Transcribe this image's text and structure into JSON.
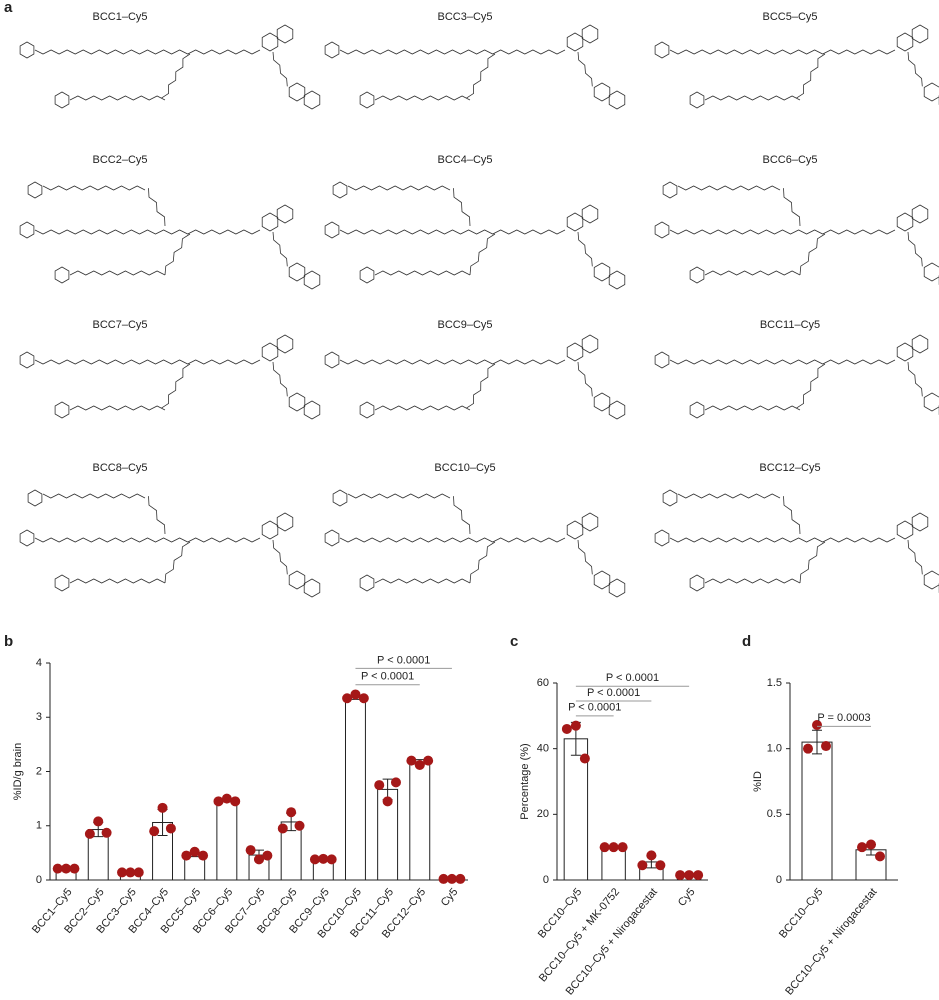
{
  "structures": {
    "panel": "a",
    "labels": [
      "BCC1–Cy5",
      "BCC3–Cy5",
      "BCC5–Cy5",
      "BCC2–Cy5",
      "BCC4–Cy5",
      "BCC6–Cy5",
      "BCC7–Cy5",
      "BCC9–Cy5",
      "BCC11–Cy5",
      "BCC8–Cy5",
      "BCC10–Cy5",
      "BCC12–Cy5"
    ]
  },
  "chart_data": [
    {
      "type": "bar",
      "panel": "b",
      "ylabel": "%ID/g brain",
      "categories": [
        "BCC1–Cy5",
        "BCC2–Cy5",
        "BCC3–Cy5",
        "BCC4–Cy5",
        "BCC5–Cy5",
        "BCC6–Cy5",
        "BCC7–Cy5",
        "BCC8–Cy5",
        "BCC9–Cy5",
        "BCC10–Cy5",
        "BCC11–Cy5",
        "BCC12–Cy5",
        "Cy5"
      ],
      "values": [
        0.21,
        0.93,
        0.14,
        1.06,
        0.47,
        1.47,
        0.46,
        1.07,
        0.38,
        3.37,
        1.67,
        2.17,
        0.02
      ],
      "errors": [
        0.01,
        0.13,
        0.01,
        0.24,
        0.04,
        0.03,
        0.09,
        0.16,
        0.01,
        0.04,
        0.19,
        0.05,
        0.01
      ],
      "points": [
        [
          0.21,
          0.21,
          0.21
        ],
        [
          0.85,
          1.08,
          0.87
        ],
        [
          0.14,
          0.14,
          0.14
        ],
        [
          0.9,
          1.33,
          0.95
        ],
        [
          0.45,
          0.52,
          0.45
        ],
        [
          1.45,
          1.5,
          1.45
        ],
        [
          0.55,
          0.38,
          0.45
        ],
        [
          0.95,
          1.25,
          1.0
        ],
        [
          0.38,
          0.39,
          0.38
        ],
        [
          3.35,
          3.42,
          3.35
        ],
        [
          1.75,
          1.45,
          1.8
        ],
        [
          2.2,
          2.12,
          2.2
        ],
        [
          0.02,
          0.02,
          0.02
        ]
      ],
      "point_color": "#a51818",
      "bar_color": "#ffffff",
      "ylim": [
        0,
        4
      ],
      "yticks": [
        0,
        1,
        2,
        3,
        4
      ],
      "annotations": [
        {
          "text": "P < 0.0001",
          "from": "BCC10–Cy5",
          "to": "Cy5",
          "y": 3.9
        },
        {
          "text": "P < 0.0001",
          "from": "BCC10–Cy5",
          "to": "BCC12–Cy5",
          "y": 3.6
        }
      ]
    },
    {
      "type": "bar",
      "panel": "c",
      "ylabel": "Percentage (%)",
      "categories": [
        "BCC10–Cy5",
        "BCC10–Cy5 + MK-0752",
        "BCC10–Cy5 + Nirogacestat",
        "Cy5"
      ],
      "values": [
        43,
        10,
        5.5,
        1.5
      ],
      "errors": [
        5,
        0.3,
        1.8,
        0.2
      ],
      "points": [
        [
          46,
          47,
          37
        ],
        [
          10,
          10,
          10
        ],
        [
          4.5,
          7.5,
          4.5
        ],
        [
          1.5,
          1.5,
          1.5
        ]
      ],
      "point_color": "#a51818",
      "bar_color": "#ffffff",
      "ylim": [
        0,
        60
      ],
      "yticks": [
        0,
        20,
        40,
        60
      ],
      "annotations": [
        {
          "text": "P < 0.0001",
          "from": "BCC10–Cy5",
          "to": "Cy5",
          "y": 59
        },
        {
          "text": "P < 0.0001",
          "from": "BCC10–Cy5",
          "to": "BCC10–Cy5 + Nirogacestat",
          "y": 54.5
        },
        {
          "text": "P < 0.0001",
          "from": "BCC10–Cy5",
          "to": "BCC10–Cy5 + MK-0752",
          "y": 50
        }
      ]
    },
    {
      "type": "bar",
      "panel": "d",
      "ylabel": "%ID",
      "categories": [
        "BCC10–Cy5",
        "BCC10–Cy5 + Nirogacestat"
      ],
      "values": [
        1.05,
        0.23
      ],
      "errors": [
        0.09,
        0.04
      ],
      "points": [
        [
          1.0,
          1.18,
          1.02
        ],
        [
          0.25,
          0.27,
          0.18
        ]
      ],
      "point_color": "#a51818",
      "bar_color": "#ffffff",
      "ylim": [
        0,
        1.5
      ],
      "yticks": [
        0,
        0.5,
        {
          "value": 1,
          "label": "1.0"
        },
        1.5
      ],
      "annotations": [
        {
          "text": "P = 0.0003",
          "from": "BCC10–Cy5",
          "to": "BCC10–Cy5 + Nirogacestat",
          "y": 1.17
        }
      ]
    }
  ]
}
